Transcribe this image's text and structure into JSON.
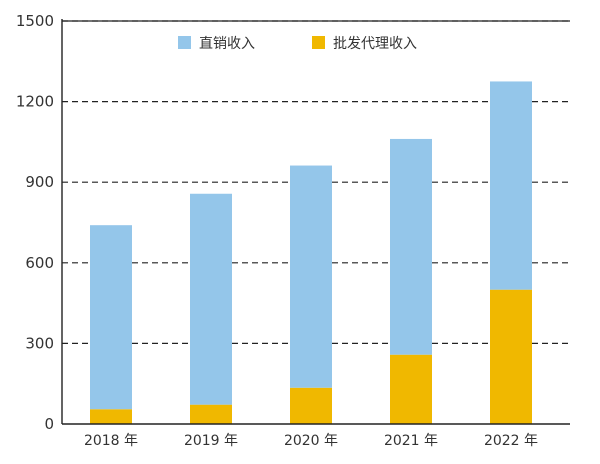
{
  "chart_data": {
    "type": "bar",
    "stacked": true,
    "categories": [
      "2018 年",
      "2019 年",
      "2020 年",
      "2021 年",
      "2022 年"
    ],
    "series": [
      {
        "name": "批发代理收入",
        "color": "#f0b800",
        "values": [
          55,
          72,
          135,
          258,
          500
        ]
      },
      {
        "name": "直销收入",
        "color": "#94c6ea",
        "values": [
          685,
          785,
          827,
          803,
          775
        ]
      }
    ],
    "totals": [
      740,
      857,
      962,
      1061,
      1275
    ],
    "ylim": [
      0,
      1500
    ],
    "yticks": [
      0,
      300,
      600,
      900,
      1200,
      1500
    ],
    "grid": true,
    "grid_style": "dashed",
    "legend_position": "top",
    "legend_order": [
      "直销收入",
      "批发代理收入"
    ],
    "title": "",
    "xlabel": "",
    "ylabel": ""
  }
}
